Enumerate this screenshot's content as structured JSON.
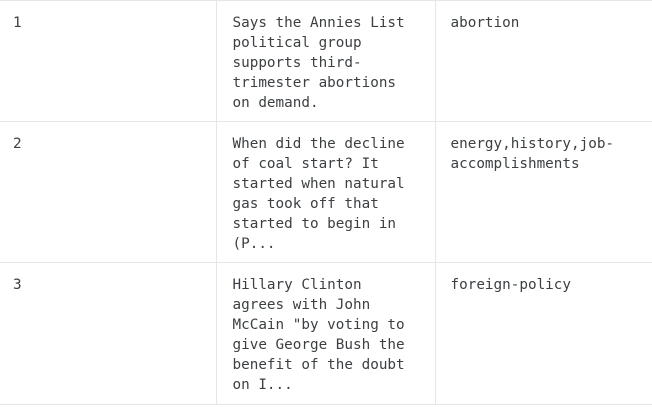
{
  "table": {
    "rows": [
      {
        "index": "1",
        "text": "Says the Annies List\npolitical group\nsupports third-\ntrimester abortions\non demand.",
        "subjects": "abortion"
      },
      {
        "index": "2",
        "text": "When did the decline\nof coal start? It\nstarted when natural\ngas took off that\nstarted to begin in\n(P...",
        "subjects": "energy,history,job-\naccomplishments"
      },
      {
        "index": "3",
        "text": "Hillary Clinton\nagrees with John\nMcCain \"by voting to\ngive George Bush the\nbenefit of the doubt\non I...",
        "subjects": "foreign-policy"
      }
    ]
  }
}
